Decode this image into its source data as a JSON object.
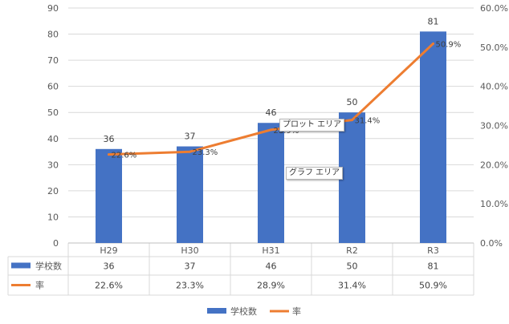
{
  "chart_data": {
    "type": "bar",
    "categories": [
      "H29",
      "H30",
      "H31",
      "R2",
      "R3"
    ],
    "series": [
      {
        "name": "学校数",
        "type": "bar",
        "axis": "left",
        "values": [
          36,
          37,
          46,
          50,
          81
        ],
        "labels": [
          "36",
          "37",
          "46",
          "50",
          "81"
        ],
        "color": "#4472c4"
      },
      {
        "name": "率",
        "type": "line",
        "axis": "right",
        "values": [
          22.6,
          23.3,
          28.9,
          31.4,
          50.9
        ],
        "labels": [
          "22.6%",
          "23.3%",
          "28.9%",
          "31.4%",
          "50.9%"
        ],
        "color": "#ed7d31"
      }
    ],
    "ylim": [
      0,
      90
    ],
    "yticks": [
      "0",
      "10",
      "20",
      "30",
      "40",
      "50",
      "60",
      "70",
      "80",
      "90"
    ],
    "y2lim": [
      0,
      60
    ],
    "y2ticks": [
      "0.0%",
      "10.0%",
      "20.0%",
      "30.0%",
      "40.0%",
      "50.0%",
      "60.0%"
    ],
    "data_table": true,
    "grid": true,
    "legend_position": "bottom"
  },
  "tooltips": {
    "plot_area": "プロット エリア",
    "chart_area": "グラフ エリア"
  }
}
